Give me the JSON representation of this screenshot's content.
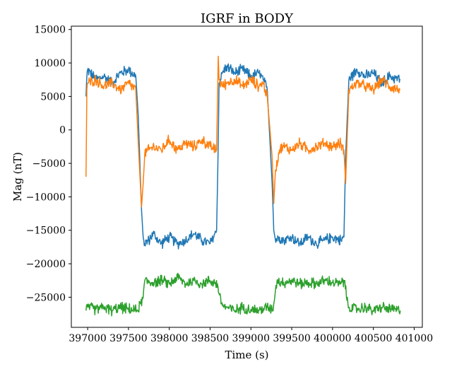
{
  "chart_data": {
    "type": "line",
    "title": "IGRF in BODY",
    "xlabel": "Time (s)",
    "ylabel": "Mag (nT)",
    "xlim": [
      396800,
      401100
    ],
    "ylim": [
      -29500,
      15500
    ],
    "xticks": [
      397000,
      397500,
      398000,
      398500,
      399000,
      399500,
      400000,
      400500,
      401000
    ],
    "xtick_labels": [
      "397000",
      "397500",
      "398000",
      "398500",
      "399000",
      "399500",
      "400000",
      "400500",
      "401000"
    ],
    "yticks": [
      15000,
      10000,
      5000,
      0,
      -5000,
      -10000,
      -15000,
      -20000,
      -25000
    ],
    "ytick_labels": [
      "15000",
      "10000",
      "5000",
      "0",
      "−5000",
      "−10000",
      "−15000",
      "−20000",
      "−25000"
    ],
    "grid": false,
    "legend": "none",
    "series": [
      {
        "color": "#1f77b4",
        "x": [
          396980,
          396990,
          397000,
          397100,
          397200,
          397300,
          397400,
          397500,
          397590,
          397620,
          397660,
          397680,
          397700,
          397750,
          397800,
          397900,
          398000,
          398100,
          398200,
          398300,
          398400,
          398500,
          398580,
          398600,
          398610,
          398650,
          398700,
          398800,
          398900,
          399000,
          399100,
          399150,
          399200,
          399260,
          399280,
          399300,
          399350,
          399400,
          399500,
          399600,
          399700,
          399800,
          399900,
          400000,
          400100,
          400140,
          400160,
          400200,
          400300,
          400400,
          400500,
          400600,
          400700,
          400830
        ],
        "y": [
          5000,
          8000,
          9000,
          7500,
          8000,
          7000,
          8500,
          9000,
          8000,
          2000,
          -12000,
          -16000,
          -17000,
          -16500,
          -15500,
          -17000,
          -16000,
          -17000,
          -16500,
          -15500,
          -16500,
          -17000,
          -15000,
          -2000,
          7000,
          8500,
          9500,
          8500,
          9000,
          8000,
          8500,
          7500,
          6000,
          -8000,
          -15000,
          -16500,
          -16000,
          -16500,
          -16000,
          -17000,
          -16000,
          -17000,
          -16500,
          -16000,
          -16500,
          -16000,
          -4000,
          7500,
          9000,
          8000,
          8500,
          7000,
          8000,
          7500
        ]
      },
      {
        "color": "#ff7f0e",
        "x": [
          396980,
          396990,
          397000,
          397100,
          397200,
          397300,
          397400,
          397500,
          397590,
          397620,
          397660,
          397680,
          397700,
          397750,
          397800,
          397900,
          398000,
          398100,
          398200,
          398300,
          398400,
          398500,
          398580,
          398600,
          398610,
          398650,
          398700,
          398800,
          398900,
          399000,
          399100,
          399150,
          399200,
          399260,
          399280,
          399300,
          399350,
          399400,
          399500,
          399600,
          399700,
          399800,
          399900,
          400000,
          400100,
          400140,
          400160,
          400200,
          400300,
          400400,
          400500,
          400600,
          400700,
          400830
        ],
        "y": [
          -7000,
          6000,
          7000,
          7500,
          6500,
          7000,
          6000,
          7000,
          6000,
          -2000,
          -11500,
          -8000,
          -3500,
          -3000,
          -2500,
          -3000,
          -1500,
          -3000,
          -2000,
          -2500,
          -1500,
          -2500,
          -3000,
          11000,
          7500,
          6500,
          7000,
          7500,
          6500,
          7500,
          6500,
          7000,
          5000,
          -4000,
          -11000,
          -6000,
          -3000,
          -2500,
          -3000,
          -2000,
          -3000,
          -2500,
          -2000,
          -2500,
          -2000,
          -3000,
          -8000,
          6000,
          7000,
          6500,
          6000,
          7500,
          6500,
          6000
        ]
      },
      {
        "color": "#2ca02c",
        "x": [
          396980,
          397000,
          397100,
          397200,
          397300,
          397400,
          397500,
          397600,
          397650,
          397680,
          397700,
          397800,
          397900,
          398000,
          398100,
          398200,
          398300,
          398400,
          398500,
          398590,
          398610,
          398640,
          398700,
          398800,
          398900,
          399000,
          399100,
          399200,
          399260,
          399280,
          399300,
          399320,
          399400,
          399500,
          399600,
          399700,
          399800,
          399900,
          400000,
          400100,
          400150,
          400170,
          400200,
          400300,
          400400,
          400500,
          400600,
          400700,
          400830
        ],
        "y": [
          -27000,
          -26500,
          -26800,
          -26500,
          -27000,
          -26500,
          -26800,
          -27000,
          -26000,
          -25000,
          -22500,
          -22800,
          -22500,
          -23000,
          -22000,
          -23000,
          -22500,
          -23000,
          -22500,
          -23000,
          -24500,
          -26000,
          -26500,
          -27000,
          -26500,
          -26800,
          -27000,
          -26500,
          -26800,
          -26000,
          -24000,
          -22500,
          -22800,
          -22500,
          -23000,
          -22800,
          -23000,
          -22500,
          -22800,
          -23000,
          -22500,
          -25000,
          -26500,
          -26800,
          -26500,
          -27000,
          -26500,
          -26800,
          -27000
        ]
      }
    ]
  }
}
